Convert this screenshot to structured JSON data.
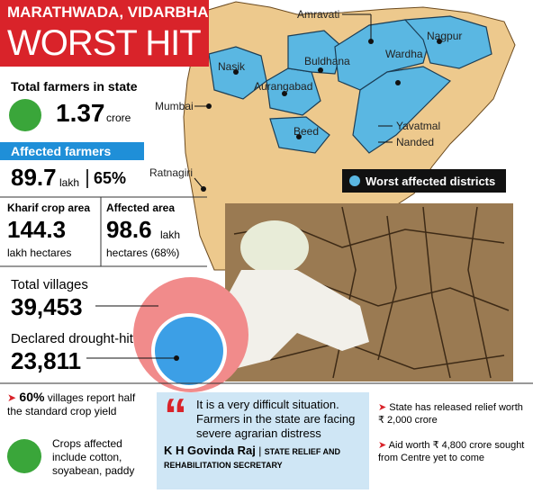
{
  "header": {
    "line1": "MARATHWADA, VIDARBHA",
    "line2": "WORST HIT"
  },
  "farmers": {
    "label": "Total farmers in state",
    "value": "1.37",
    "unit": "crore"
  },
  "affected_farmers": {
    "label": "Affected farmers",
    "value": "89.7",
    "unit": "lakh",
    "share": "65%"
  },
  "kharif": {
    "label": "Kharif crop area",
    "value": "144.3",
    "unit": "lakh hectares"
  },
  "affected_area": {
    "label": "Affected area",
    "value": "98.6",
    "unit": "lakh",
    "unit2": "hectares (68%)"
  },
  "villages": {
    "label": "Total villages",
    "value": "39,453"
  },
  "drought": {
    "label": "Declared drought-hit",
    "value": "23,811"
  },
  "yield": {
    "value": "60%",
    "text": "villages report half the standard crop yield"
  },
  "crops": {
    "text": "Crops affected include cotton, soyabean, paddy"
  },
  "quote": {
    "text": "It is a very difficult situation. Farmers in the state are facing severe agrarian distress",
    "name": "K H Govinda Raj",
    "role": "STATE RELIEF AND REHABILITATION SECRETARY"
  },
  "relief": {
    "items": [
      "State has released relief worth ₹ 2,000 crore",
      "Aid worth ₹ 4,800 crore sought from Centre yet to come"
    ]
  },
  "map": {
    "labels": [
      "Amravati",
      "Nagpur",
      "Wardha",
      "Buldhana",
      "Nasik",
      "Aurangabad",
      "Mumbai",
      "Beed",
      "Yavatmal",
      "Nanded",
      "Ratnagiri"
    ],
    "legend": "Worst affected districts"
  }
}
